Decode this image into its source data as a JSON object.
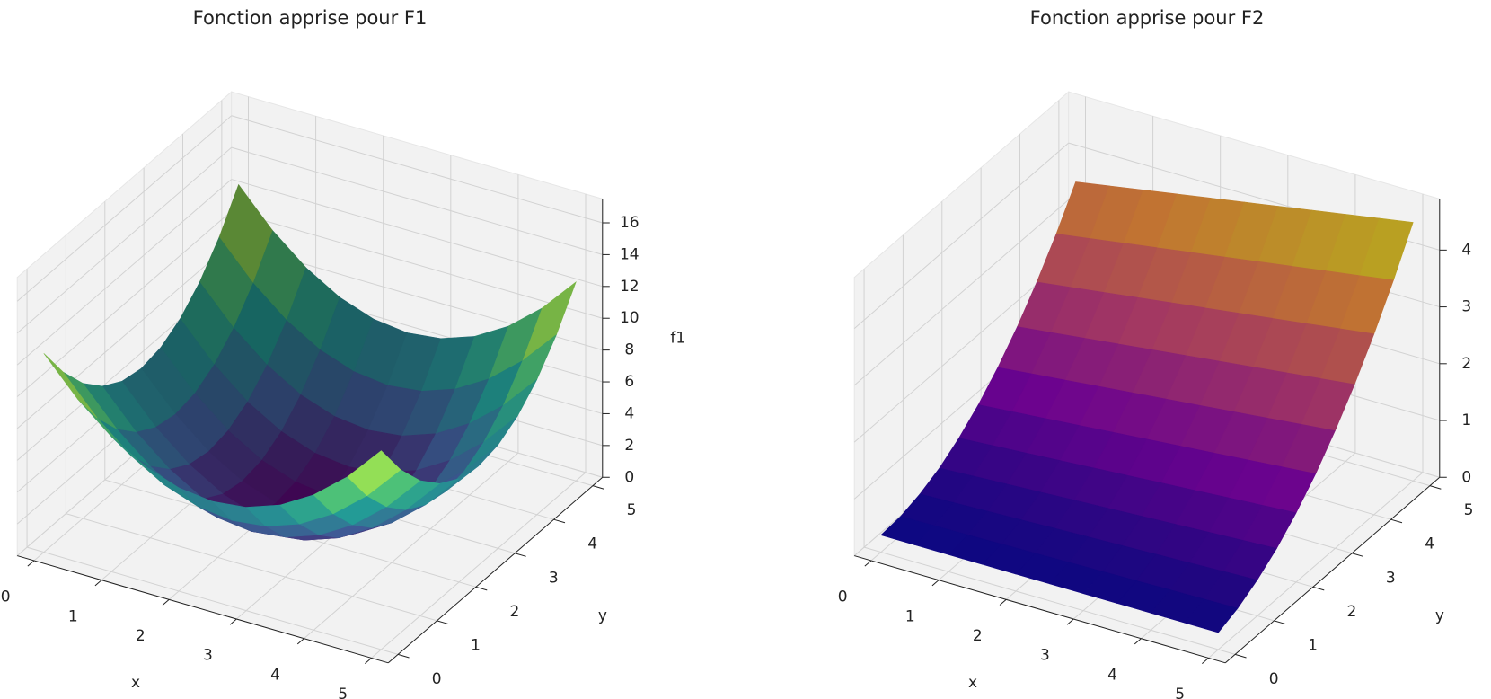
{
  "chart_data": [
    {
      "type": "surface",
      "title": "Fonction apprise pour F1",
      "colormap": "viridis",
      "xlabel": "x",
      "ylabel": "y",
      "zlabel": "f1",
      "x": [
        0,
        0.5,
        1,
        1.5,
        2,
        2.5,
        3,
        3.5,
        4,
        4.5,
        5
      ],
      "y": [
        0,
        0.5,
        1,
        1.5,
        2,
        2.5,
        3,
        3.5,
        4,
        4.5,
        5
      ],
      "z": [
        [
          12.5,
          10.25,
          8.5,
          7.25,
          6.5,
          6.25,
          6.5,
          7.25,
          8.5,
          10.25,
          12.5
        ],
        [
          10.25,
          8,
          6.25,
          5,
          4.25,
          4,
          4.25,
          5,
          6.25,
          8,
          10.25
        ],
        [
          8.5,
          6.25,
          4.5,
          3.25,
          2.5,
          2.25,
          2.5,
          3.25,
          4.5,
          6.25,
          8.5
        ],
        [
          7.25,
          5,
          3.25,
          2,
          1.25,
          1,
          1.25,
          2,
          3.25,
          5,
          7.25
        ],
        [
          6.5,
          4.25,
          2.5,
          1.25,
          0.5,
          0.25,
          0.5,
          1.25,
          2.5,
          4.25,
          6.5
        ],
        [
          6.25,
          4,
          2.25,
          1,
          0.25,
          0,
          0.25,
          1,
          2.25,
          4,
          6.25
        ],
        [
          6.5,
          4.25,
          2.5,
          1.25,
          0.5,
          0.25,
          0.5,
          1.25,
          2.5,
          4.25,
          6.5
        ],
        [
          7.25,
          5,
          3.25,
          2,
          1.25,
          1,
          1.25,
          2,
          3.25,
          5,
          7.25
        ],
        [
          8.5,
          6.25,
          4.5,
          3.25,
          2.5,
          2.25,
          2.5,
          3.25,
          4.5,
          6.25,
          8.5
        ],
        [
          10.25,
          8,
          6.25,
          5,
          4.25,
          4,
          4.25,
          5,
          6.25,
          8,
          10.25
        ],
        [
          12.5,
          10.25,
          8.5,
          7.25,
          6.5,
          6.25,
          6.5,
          7.25,
          8.5,
          10.25,
          12.5
        ]
      ],
      "xlim": [
        -0.25,
        5.25
      ],
      "ylim": [
        -0.25,
        5.25
      ],
      "zlim": [
        0,
        17.5
      ],
      "xticks": [
        0,
        1,
        2,
        3,
        4,
        5
      ],
      "yticks": [
        0,
        1,
        2,
        3,
        4,
        5
      ],
      "zticks": [
        0,
        2,
        4,
        6,
        8,
        10,
        12,
        14,
        16
      ],
      "grid": true
    },
    {
      "type": "surface",
      "title": "Fonction apprise pour F2",
      "colormap": "plasma",
      "xlabel": "x",
      "ylabel": "y",
      "x": [
        0,
        0.5,
        1,
        1.5,
        2,
        2.5,
        3,
        3.5,
        4,
        4.5,
        5
      ],
      "y": [
        0,
        0.5,
        1,
        1.5,
        2,
        2.5,
        3,
        3.5,
        4,
        4.5,
        5
      ],
      "z": [
        [
          0.3,
          0.3,
          0.3,
          0.3,
          0.3,
          0.3,
          0.3,
          0.3,
          0.3,
          0.3,
          0.3
        ],
        [
          0.33,
          0.34,
          0.35,
          0.36,
          0.37,
          0.38,
          0.39,
          0.4,
          0.41,
          0.42,
          0.43
        ],
        [
          0.43,
          0.45,
          0.47,
          0.49,
          0.51,
          0.53,
          0.55,
          0.57,
          0.59,
          0.61,
          0.63
        ],
        [
          0.59,
          0.62,
          0.65,
          0.68,
          0.71,
          0.74,
          0.77,
          0.8,
          0.83,
          0.86,
          0.89
        ],
        [
          0.82,
          0.86,
          0.9,
          0.94,
          0.98,
          1.02,
          1.06,
          1.1,
          1.14,
          1.18,
          1.22
        ],
        [
          1.11,
          1.16,
          1.21,
          1.26,
          1.31,
          1.36,
          1.41,
          1.46,
          1.51,
          1.56,
          1.61
        ],
        [
          1.47,
          1.53,
          1.59,
          1.65,
          1.71,
          1.77,
          1.83,
          1.89,
          1.95,
          2.01,
          2.07
        ],
        [
          1.89,
          1.96,
          2.03,
          2.1,
          2.17,
          2.24,
          2.31,
          2.38,
          2.45,
          2.52,
          2.59
        ],
        [
          2.38,
          2.46,
          2.54,
          2.62,
          2.7,
          2.78,
          2.86,
          2.94,
          3.02,
          3.1,
          3.18
        ],
        [
          2.93,
          3.02,
          3.11,
          3.2,
          3.29,
          3.38,
          3.47,
          3.56,
          3.65,
          3.74,
          3.83
        ],
        [
          3.55,
          3.65,
          3.75,
          3.85,
          3.95,
          4.05,
          4.15,
          4.25,
          4.35,
          4.45,
          4.55
        ]
      ],
      "xlim": [
        -0.25,
        5.25
      ],
      "ylim": [
        -0.25,
        5.25
      ],
      "zlim": [
        0,
        4.9
      ],
      "xticks": [
        0,
        1,
        2,
        3,
        4,
        5
      ],
      "yticks": [
        0,
        1,
        2,
        3,
        4,
        5
      ],
      "zticks": [
        0,
        1,
        2,
        3,
        4
      ],
      "grid": true
    }
  ]
}
